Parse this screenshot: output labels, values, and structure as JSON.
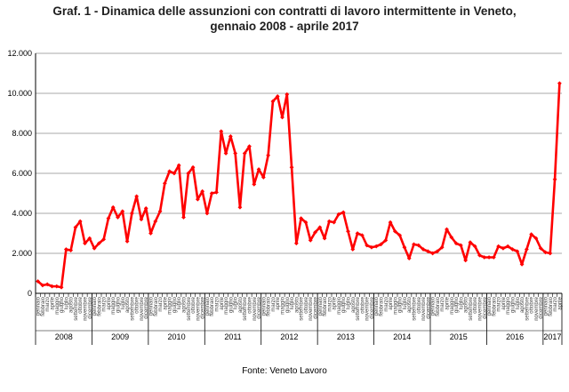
{
  "chart_data": {
    "type": "line",
    "title_line1": "Graf. 1 - Dinamica delle assunzioni con contratti di lavoro intermittente in Veneto,",
    "title_line2": "gennaio 2008 - aprile 2017",
    "source": "Fonte: Veneto Lavoro",
    "ylim": [
      0,
      12000
    ],
    "y_ticks": [
      "0",
      "2.000",
      "4.000",
      "6.000",
      "8.000",
      "10.000",
      "12.000"
    ],
    "y_tick_values": [
      0,
      2000,
      4000,
      6000,
      8000,
      10000,
      12000
    ],
    "grid": true,
    "legend": "none",
    "line_color": "#ff0000",
    "year_labels": [
      "2008",
      "2009",
      "2010",
      "2011",
      "2012",
      "2013",
      "2014",
      "2015",
      "2016",
      "2017"
    ],
    "months_per_year": [
      12,
      12,
      12,
      12,
      12,
      12,
      12,
      12,
      12,
      4
    ],
    "month_names": [
      "gennaio",
      "febbraio",
      "marzo",
      "aprile",
      "maggio",
      "giugno",
      "luglio",
      "agosto",
      "settembre",
      "ottobre",
      "novembre",
      "dicembre"
    ],
    "series": [
      {
        "values": [
          600,
          400,
          450,
          350,
          350,
          300,
          2200,
          2150,
          3300,
          3600,
          2500,
          2750,
          2250,
          2500,
          2700,
          3750,
          4300,
          3800,
          4100,
          2600,
          4000,
          4850,
          3700,
          4250,
          3000,
          3600,
          4100,
          5500,
          6100,
          6000,
          6400,
          3800,
          6000,
          6300,
          4700,
          5100,
          4000,
          5000,
          5050,
          8100,
          7000,
          7850,
          7000,
          4300,
          7000,
          7350,
          5450,
          6200,
          5800,
          6900,
          9600,
          9850,
          8800,
          9950,
          6300,
          2500,
          3750,
          3550,
          2650,
          3050,
          3300,
          2750,
          3600,
          3550,
          3950,
          4050,
          3100,
          2200,
          3000,
          2900,
          2400,
          2300,
          2350,
          2450,
          2650,
          3550,
          3100,
          2900,
          2300,
          1750,
          2450,
          2400,
          2200,
          2100,
          2000,
          2100,
          2300,
          3200,
          2800,
          2500,
          2400,
          1650,
          2550,
          2350,
          1900,
          1800,
          1800,
          1800,
          2350,
          2250,
          2350,
          2200,
          2100,
          1450,
          2200,
          2950,
          2750,
          2250,
          2050,
          2000,
          5700,
          10500
        ]
      }
    ]
  }
}
